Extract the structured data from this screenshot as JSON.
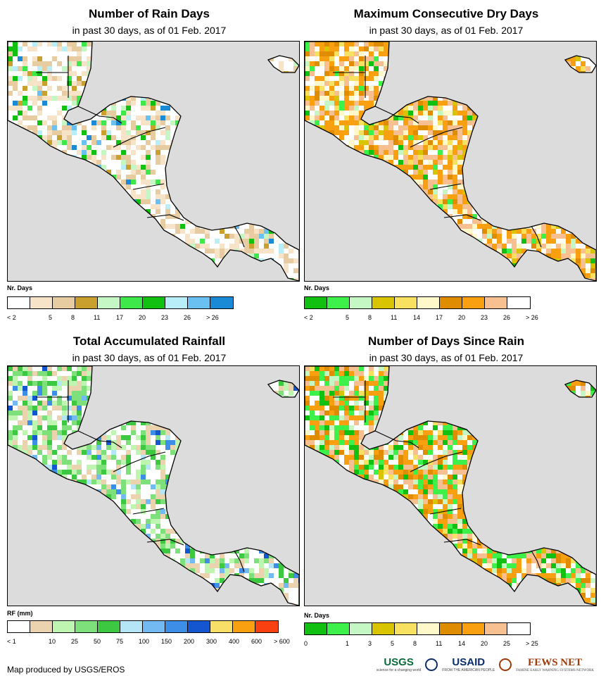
{
  "panels": [
    {
      "title": "Number of Rain Days",
      "subtitle": "in past 30 days, as of 01 Feb. 2017",
      "legend_title": "Nr. Days",
      "colors": [
        "#ffffff",
        "#f7e4c8",
        "#e6cca0",
        "#c9a02e",
        "#c4f7c4",
        "#3ee84a",
        "#12c012",
        "#b8eef7",
        "#6ac0f0",
        "#1a8ad6"
      ],
      "labels": [
        "< 2",
        "5",
        "8",
        "11",
        "17",
        "20",
        "23",
        "26",
        "> 26"
      ],
      "fill_weights": [
        40,
        20,
        18,
        4,
        3,
        3,
        3,
        2,
        2,
        1
      ],
      "icon": "rain-days-map"
    },
    {
      "title": "Maximum Consecutive Dry Days",
      "subtitle": "in past 30 days, as of 01 Feb. 2017",
      "legend_title": "Nr. Days",
      "colors": [
        "#12c012",
        "#3ef04a",
        "#c4f7c4",
        "#d8c400",
        "#f8e060",
        "#fff8c8",
        "#e08c00",
        "#f8a010",
        "#f8c090",
        "#ffffff"
      ],
      "labels": [
        "< 2",
        "5",
        "8",
        "11",
        "14",
        "17",
        "20",
        "23",
        "26",
        "> 26"
      ],
      "fill_weights": [
        3,
        3,
        2,
        4,
        6,
        10,
        10,
        25,
        20,
        17
      ],
      "icon": "dry-days-map"
    },
    {
      "title": "Total Accumulated Rainfall",
      "subtitle": "in past 30 days, as of 01 Feb. 2017",
      "legend_title": "RF (mm)",
      "colors": [
        "#ffffff",
        "#ecd3b0",
        "#bef5b0",
        "#7ee07a",
        "#3cc840",
        "#b4e6f8",
        "#74baf2",
        "#3c8ee6",
        "#1456d0",
        "#f8e068",
        "#f8a010",
        "#f84010"
      ],
      "labels": [
        "< 1",
        "10",
        "25",
        "50",
        "75",
        "100",
        "150",
        "200",
        "300",
        "400",
        "600",
        "> 600"
      ],
      "fill_weights": [
        35,
        18,
        12,
        14,
        10,
        3,
        3,
        3,
        2,
        0,
        0,
        0
      ],
      "icon": "rainfall-map"
    },
    {
      "title": "Number of Days Since Rain",
      "subtitle": "in past 30 days, as of 01 Feb. 2017",
      "legend_title": "Nr. Days",
      "colors": [
        "#12c012",
        "#3ef04a",
        "#c4f7c4",
        "#d8c400",
        "#f8e060",
        "#fff8c8",
        "#e08c00",
        "#f8a010",
        "#f8c090",
        "#ffffff"
      ],
      "labels": [
        "0",
        "1",
        "3",
        "5",
        "8",
        "11",
        "14",
        "20",
        "25",
        "> 25"
      ],
      "fill_weights": [
        8,
        12,
        8,
        2,
        3,
        3,
        12,
        20,
        14,
        18
      ],
      "icon": "days-since-rain-map"
    }
  ],
  "footer": "Map produced by USGS/EROS",
  "logos": {
    "usgs": "USGS",
    "usgs_sub": "science for a changing world",
    "usaid": "USAID",
    "usaid_sub": "FROM THE AMERICAN PEOPLE",
    "fews": "FEWS NET",
    "fews_sub": "FAMINE EARLY WARNING SYSTEMS NETWORK"
  },
  "colors": {
    "ocean": "#dcdcdc",
    "land": "#ffffff",
    "border": "#000000"
  }
}
